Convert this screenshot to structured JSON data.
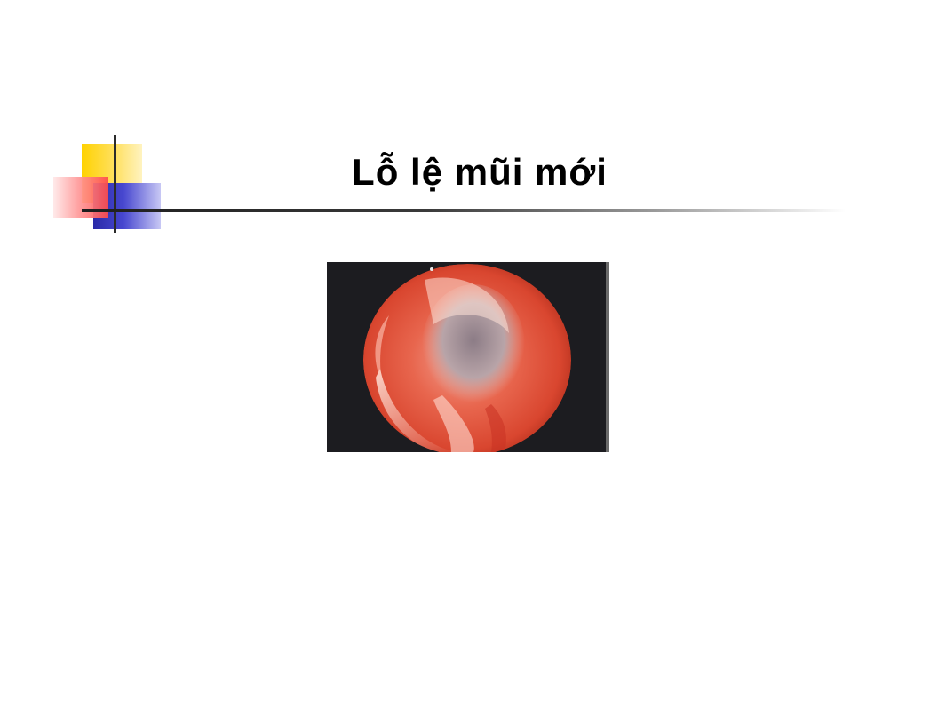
{
  "slide": {
    "title": "Lỗ lệ mũi mới"
  },
  "colors": {
    "accent_yellow": "#ffd200",
    "accent_blue": "#2a2aa8",
    "accent_red": "#ff4a4a",
    "rule": "#2b2b2b",
    "photo_background": "#1c1c20",
    "tissue_red": "#e0553f"
  }
}
